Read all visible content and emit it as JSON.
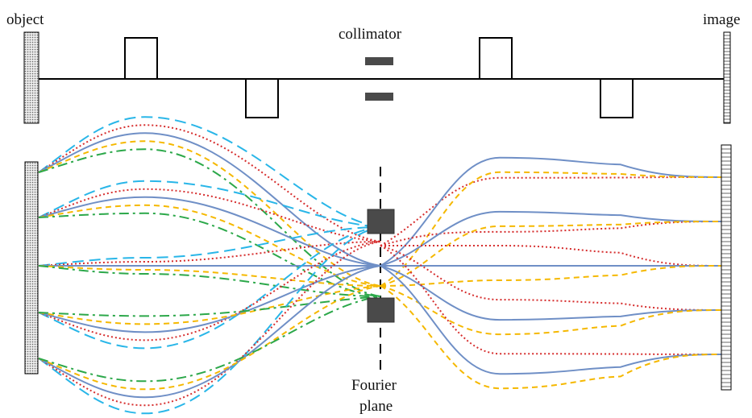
{
  "labels": {
    "object": "object",
    "image": "image",
    "collimator": "collimator",
    "fourier_line1": "Fourier",
    "fourier_line2": "plane"
  },
  "colors": {
    "axis": "#000000",
    "block": "#4a4a4a",
    "object_fill": "#d8d8d8",
    "blue_solid": "#6f8fc6",
    "cyan_dashed": "#29b6e8",
    "red_dotted": "#d62e2e",
    "yellow_dashed": "#f5b800",
    "green_dashdot": "#2ca84a"
  },
  "ray_styles": [
    {
      "key": "cyan_dashed",
      "pattern": "dashed"
    },
    {
      "key": "red_dotted",
      "pattern": "dotted"
    },
    {
      "key": "blue_solid",
      "pattern": "solid"
    },
    {
      "key": "yellow_dashed",
      "pattern": "short-dashed"
    },
    {
      "key": "green_dashdot",
      "pattern": "dash-dot"
    }
  ]
}
